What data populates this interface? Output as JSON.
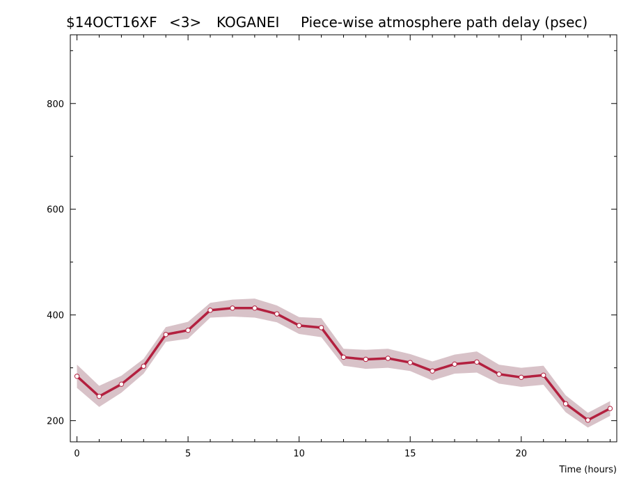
{
  "title": {
    "session": "$14OCT16XF",
    "scan": "<3>",
    "station": "KOGANEI",
    "description": "Piece-wise atmosphere path delay (psec)"
  },
  "colors": {
    "line": "#b3203f",
    "band": "#d8c2c8",
    "marker_fill": "#ffffff",
    "axes": "#000000"
  },
  "chart_data": {
    "type": "line",
    "xlabel": "Time (hours)",
    "ylabel": "",
    "xlim": [
      -0.3,
      24.3
    ],
    "ylim": [
      160,
      930
    ],
    "x_ticks": [
      0,
      5,
      10,
      15,
      20
    ],
    "y_ticks": [
      200,
      400,
      600,
      800
    ],
    "grid": false,
    "series": [
      {
        "x": [
          0,
          1,
          2,
          3,
          4,
          5,
          6,
          7,
          8,
          9,
          10,
          11,
          12,
          13,
          14,
          15,
          16,
          17,
          18,
          19,
          20,
          21,
          22,
          23,
          24
        ],
        "values": [
          284,
          246,
          269,
          303,
          363,
          371,
          409,
          413,
          413,
          402,
          380,
          376,
          320,
          316,
          318,
          310,
          294,
          307,
          311,
          288,
          282,
          286,
          232,
          201,
          223
        ],
        "error": [
          22,
          20,
          16,
          14,
          14,
          16,
          14,
          16,
          18,
          16,
          16,
          18,
          16,
          18,
          18,
          16,
          18,
          18,
          20,
          18,
          18,
          18,
          16,
          14,
          14
        ]
      }
    ]
  }
}
